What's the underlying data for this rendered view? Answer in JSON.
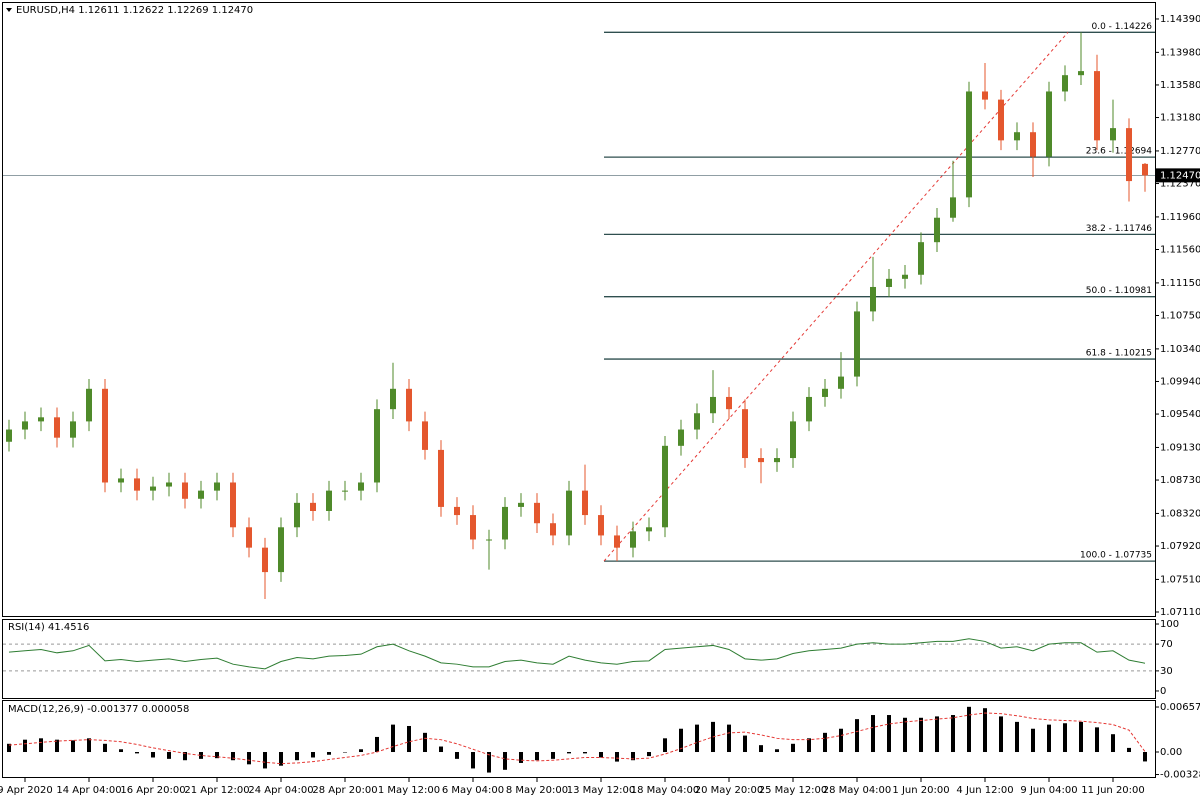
{
  "chart_data": [
    {
      "type": "candlestick",
      "title": "EURUSD,H4  1.12611 1.12622 1.12269 1.12470",
      "categories": [
        null,
        "9 Apr 2020",
        null,
        null,
        null,
        "14 Apr 04:00",
        null,
        null,
        null,
        "16 Apr 20:00",
        null,
        null,
        null,
        "21 Apr 12:00",
        null,
        null,
        null,
        "24 Apr 04:00",
        null,
        null,
        null,
        "28 Apr 20:00",
        null,
        null,
        null,
        "1 May 12:00",
        null,
        null,
        null,
        "6 May 04:00",
        null,
        null,
        null,
        "8 May 20:00",
        null,
        null,
        null,
        "13 May 12:00",
        null,
        null,
        null,
        "18 May 04:00",
        null,
        null,
        null,
        "20 May 20:00",
        null,
        null,
        null,
        "25 May 12:00",
        null,
        null,
        null,
        "28 May 04:00",
        null,
        null,
        null,
        "1 Jun 20:00",
        null,
        null,
        null,
        "4 Jun 12:00",
        null,
        null,
        null,
        "9 Jun 04:00",
        null,
        null,
        null,
        "11 Jun 20:00",
        null,
        null
      ],
      "open": [
        1.092,
        1.0935,
        1.0945,
        1.095,
        1.0925,
        1.0945,
        1.0985,
        1.087,
        1.0875,
        1.086,
        1.0865,
        1.087,
        1.085,
        1.086,
        1.087,
        1.0815,
        1.079,
        1.076,
        1.0815,
        1.0845,
        1.0835,
        1.086,
        1.086,
        1.087,
        1.096,
        1.0985,
        1.0945,
        1.091,
        1.084,
        1.083,
        1.08,
        1.08,
        1.084,
        1.0845,
        1.082,
        1.0805,
        1.086,
        1.083,
        1.0805,
        1.079,
        1.081,
        1.0815,
        1.0915,
        1.0935,
        1.0955,
        1.0975,
        1.096,
        1.09,
        1.0895,
        1.09,
        1.0945,
        1.0975,
        1.0985,
        1.1,
        1.108,
        1.111,
        1.112,
        1.1125,
        1.1165,
        1.1195,
        1.122,
        1.135,
        1.134,
        1.129,
        1.13,
        1.127,
        1.135,
        1.137,
        1.1375,
        1.129,
        1.1305,
        1.12611
      ],
      "high": [
        1.0947,
        1.0957,
        1.0962,
        1.0962,
        1.0957,
        1.0997,
        1.0997,
        1.0887,
        1.0887,
        1.0877,
        1.0882,
        1.0882,
        1.0872,
        1.0882,
        1.0882,
        1.0827,
        1.0802,
        1.0827,
        1.0857,
        1.0857,
        1.0872,
        1.0872,
        1.0882,
        1.0972,
        1.1017,
        1.0997,
        1.0957,
        1.0922,
        1.0852,
        1.0842,
        1.0812,
        1.0852,
        1.0857,
        1.0857,
        1.0832,
        1.0872,
        1.0892,
        1.0842,
        1.0817,
        1.0822,
        1.0827,
        1.0927,
        1.0947,
        1.0967,
        1.1008,
        1.0987,
        1.0972,
        1.0912,
        1.0912,
        1.0957,
        1.0987,
        1.0997,
        1.103,
        1.1092,
        1.1147,
        1.1132,
        1.1137,
        1.1177,
        1.1207,
        1.1265,
        1.1362,
        1.1385,
        1.1352,
        1.1312,
        1.1312,
        1.1362,
        1.1382,
        1.14226,
        1.1395,
        1.134,
        1.1317,
        1.12622
      ],
      "low": [
        1.0908,
        1.0923,
        1.0933,
        1.0913,
        1.0913,
        1.0933,
        1.0858,
        1.0858,
        1.0848,
        1.0848,
        1.0853,
        1.0838,
        1.0838,
        1.0848,
        1.0803,
        1.0778,
        1.0727,
        1.0748,
        1.0803,
        1.0823,
        1.0823,
        1.0848,
        1.0848,
        1.0858,
        1.0948,
        1.0933,
        1.0898,
        1.0828,
        1.0818,
        1.0788,
        1.0763,
        1.0788,
        1.0828,
        1.0808,
        1.0793,
        1.0793,
        1.0818,
        1.0793,
        1.07735,
        1.0778,
        1.0798,
        1.0803,
        1.0903,
        1.0923,
        1.0943,
        1.0948,
        1.0888,
        1.0869,
        1.0883,
        1.0888,
        1.0933,
        1.0963,
        1.0973,
        1.0988,
        1.1068,
        1.1098,
        1.1108,
        1.1113,
        1.1153,
        1.119,
        1.1208,
        1.1328,
        1.1278,
        1.1278,
        1.1245,
        1.1258,
        1.1338,
        1.1358,
        1.1278,
        1.1275,
        1.1215,
        1.12269
      ],
      "close": [
        1.0935,
        1.0945,
        1.095,
        1.0925,
        1.0945,
        1.0985,
        1.087,
        1.0875,
        1.086,
        1.0865,
        1.087,
        1.085,
        1.086,
        1.087,
        1.0815,
        1.079,
        1.076,
        1.0815,
        1.0845,
        1.0835,
        1.086,
        1.086,
        1.087,
        1.096,
        1.0985,
        1.0945,
        1.091,
        1.084,
        1.083,
        1.08,
        1.08,
        1.084,
        1.0845,
        1.082,
        1.0805,
        1.086,
        1.083,
        1.0805,
        1.079,
        1.081,
        1.0815,
        1.0915,
        1.0935,
        1.0955,
        1.0975,
        1.096,
        1.09,
        1.0895,
        1.09,
        1.0945,
        1.0975,
        1.0985,
        1.1,
        1.108,
        1.111,
        1.112,
        1.1125,
        1.1165,
        1.1195,
        1.122,
        1.135,
        1.134,
        1.129,
        1.13,
        1.127,
        1.135,
        1.137,
        1.1375,
        1.129,
        1.1305,
        1.124,
        1.1247
      ],
      "up_color": "#4f8a2a",
      "down_color": "#e4572e",
      "ylim": [
        1.07061,
        1.14586
      ],
      "yticks": [
        {
          "value": 1.1439,
          "label": "1.14390"
        },
        {
          "value": 1.1398,
          "label": "1.13980"
        },
        {
          "value": 1.1358,
          "label": "1.13580"
        },
        {
          "value": 1.1318,
          "label": "1.13180"
        },
        {
          "value": 1.1277,
          "label": "1.12770"
        },
        {
          "value": 1.1237,
          "label": "1.12370"
        },
        {
          "value": 1.1196,
          "label": "1.11960"
        },
        {
          "value": 1.1156,
          "label": "1.11560"
        },
        {
          "value": 1.1115,
          "label": "1.11150"
        },
        {
          "value": 1.1075,
          "label": "1.10750"
        },
        {
          "value": 1.1034,
          "label": "1.10340"
        },
        {
          "value": 1.0994,
          "label": "1.09940"
        },
        {
          "value": 1.0954,
          "label": "1.09540"
        },
        {
          "value": 1.0913,
          "label": "1.09130"
        },
        {
          "value": 1.0873,
          "label": "1.08730"
        },
        {
          "value": 1.0832,
          "label": "1.08320"
        },
        {
          "value": 1.0792,
          "label": "1.07920"
        },
        {
          "value": 1.0751,
          "label": "1.07510"
        },
        {
          "value": 1.0711,
          "label": "1.07110"
        }
      ],
      "last_price": {
        "value": 1.1247,
        "label": "1.12470"
      },
      "fibonacci": [
        {
          "label": "0.0 - 1.14226",
          "value": 1.14226
        },
        {
          "label": "23.6 - 1.12694",
          "value": 1.12694
        },
        {
          "label": "38.2 - 1.11746",
          "value": 1.11746
        },
        {
          "label": "50.0 - 1.10981",
          "value": 1.10981
        },
        {
          "label": "61.8 - 1.10215",
          "value": 1.10215
        },
        {
          "label": "100.0 - 1.07735",
          "value": 1.07735
        }
      ]
    },
    {
      "type": "line",
      "title": "RSI(14) 41.4516",
      "color": "#2e7d32",
      "values": [
        58,
        60,
        62,
        57,
        60,
        68,
        45,
        47,
        44,
        46,
        48,
        44,
        47,
        49,
        40,
        36,
        33,
        44,
        50,
        48,
        52,
        53,
        55,
        66,
        70,
        60,
        52,
        42,
        40,
        36,
        36,
        44,
        46,
        42,
        40,
        52,
        46,
        42,
        40,
        44,
        45,
        62,
        64,
        66,
        68,
        62,
        48,
        46,
        48,
        56,
        60,
        62,
        64,
        70,
        72,
        70,
        70,
        72,
        74,
        74,
        78,
        74,
        64,
        66,
        60,
        70,
        72,
        72,
        58,
        60,
        46,
        41.4516
      ],
      "ylim": [
        -10.5,
        106
      ],
      "yticks": [
        100,
        70,
        30,
        0
      ]
    },
    {
      "type": "macd",
      "title": "MACD(12,26,9) -0.001377 0.000058",
      "values": [
        0.0012,
        0.0018,
        0.002,
        0.0018,
        0.0017,
        0.002,
        0.0012,
        0.0004,
        -0.0002,
        -0.0008,
        -0.001,
        -0.0012,
        -0.001,
        -0.0009,
        -0.0012,
        -0.0018,
        -0.0024,
        -0.002,
        -0.0012,
        -0.0008,
        -0.0004,
        0,
        0.0004,
        0.0022,
        0.004,
        0.0038,
        0.0028,
        0.0008,
        -0.001,
        -0.0024,
        -0.003,
        -0.0026,
        -0.0016,
        -0.0012,
        -0.001,
        -0.0002,
        -0.0002,
        -0.0008,
        -0.0014,
        -0.0012,
        -0.0006,
        0.002,
        0.0034,
        0.004,
        0.0044,
        0.004,
        0.0024,
        0.001,
        0.0004,
        0.0012,
        0.002,
        0.0028,
        0.0034,
        0.0048,
        0.0054,
        0.0054,
        0.005,
        0.005,
        0.0052,
        0.0054,
        0.0066,
        0.0064,
        0.0052,
        0.0044,
        0.0034,
        0.004,
        0.0042,
        0.0044,
        0.0036,
        0.0026,
        0.0006,
        -0.001377
      ],
      "signal": [
        0.001,
        0.0012,
        0.0014,
        0.0016,
        0.0017,
        0.0018,
        0.0017,
        0.0015,
        0.0011,
        0.0006,
        0.0002,
        -0.0002,
        -0.0005,
        -0.0007,
        -0.0009,
        -0.0012,
        -0.0015,
        -0.0017,
        -0.0016,
        -0.0014,
        -0.0011,
        -0.0008,
        -0.0005,
        0,
        0.0008,
        0.0015,
        0.002,
        0.0018,
        0.0012,
        0.0004,
        -0.0004,
        -0.001,
        -0.0012,
        -0.0013,
        -0.0012,
        -0.001,
        -0.0008,
        -0.0008,
        -0.0009,
        -0.001,
        -0.0009,
        -0.0003,
        0.0005,
        0.0014,
        0.0022,
        0.0028,
        0.0029,
        0.0025,
        0.002,
        0.0018,
        0.0018,
        0.002,
        0.0024,
        0.003,
        0.0036,
        0.0041,
        0.0044,
        0.0046,
        0.0048,
        0.005,
        0.0054,
        0.0057,
        0.0056,
        0.0053,
        0.0049,
        0.0047,
        0.0046,
        0.0045,
        0.0043,
        0.004,
        0.0032,
        5.8e-05
      ],
      "color": "#000000",
      "signal_color": "#e53935",
      "ylim": [
        -0.00365,
        0.00745
      ],
      "yticks": [
        0.006571,
        {
          "value": 0,
          "label": "0.00"
        },
        -0.003289
      ]
    }
  ]
}
